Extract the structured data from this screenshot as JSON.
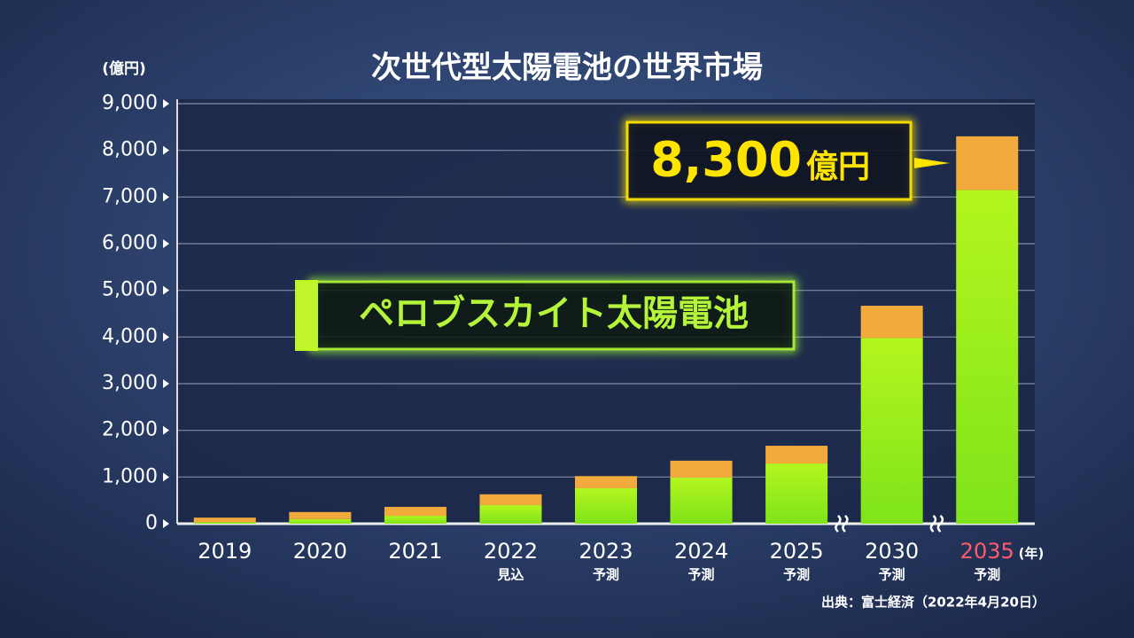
{
  "chart_data": {
    "type": "stacked_bar",
    "title": "次世代型太陽電池の世界市場",
    "y_unit_label": "(億円)",
    "x_unit_label": "(年)",
    "categories": [
      "2019",
      "2020",
      "2021",
      "2022",
      "2023",
      "2024",
      "2025",
      "2030",
      "2035"
    ],
    "category_notes": [
      null,
      null,
      null,
      "見込",
      "予測",
      "予測",
      "予測",
      "予測",
      "予測"
    ],
    "series": [
      {
        "name": "ペロブスカイト太陽電池",
        "color": "#a6f01c",
        "values": [
          30,
          100,
          170,
          400,
          760,
          990,
          1290,
          3980,
          7150
        ]
      },
      {
        "color": "#f2aa3c",
        "values": [
          100,
          150,
          190,
          230,
          260,
          360,
          380,
          690,
          1150
        ]
      }
    ],
    "callout": {
      "value": "8,300",
      "unit": "億円"
    },
    "ylim": [
      0,
      9000
    ],
    "yticks": [
      0,
      {
        "value": 1000,
        "label": "1,000"
      },
      {
        "value": 2000,
        "label": "2,000"
      },
      {
        "value": 3000,
        "label": "3,000"
      },
      {
        "value": 4000,
        "label": "4,000"
      },
      {
        "value": 5000,
        "label": "5,000"
      },
      {
        "value": 6000,
        "label": "6,000"
      },
      {
        "value": 7000,
        "label": "7,000"
      },
      {
        "value": 8000,
        "label": "8,000"
      },
      {
        "value": 9000,
        "label": "9,000"
      }
    ],
    "grid": true,
    "source": "出典：富士経済（2022年4月20日）"
  }
}
